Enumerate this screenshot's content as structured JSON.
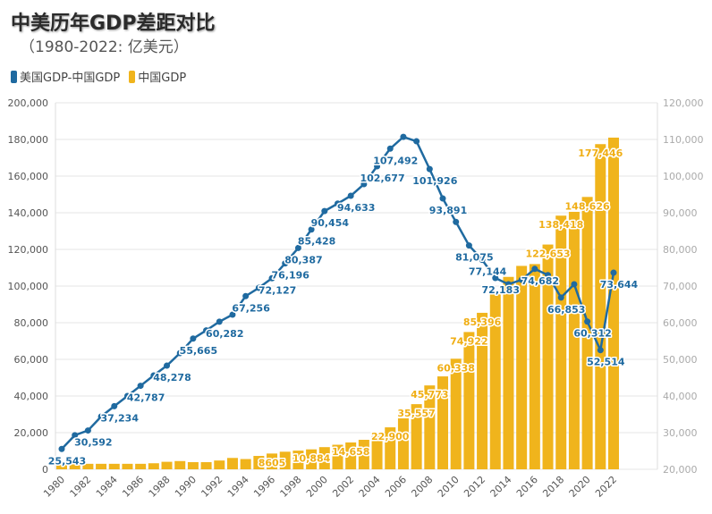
{
  "header": {
    "title": "中美历年GDP差距对比",
    "subtitle": "（1980-2022: 亿美元）"
  },
  "legend": [
    {
      "label": "美国GDP-中国GDP",
      "color": "#1f6aa0"
    },
    {
      "label": "中国GDP",
      "color": "#f0b41c"
    }
  ],
  "chart_data": {
    "type": "bar+line",
    "title": "中美历年GDP差距对比",
    "subtitle": "（1980-2022: 亿美元）",
    "categories": [
      1980,
      1981,
      1982,
      1983,
      1984,
      1985,
      1986,
      1987,
      1988,
      1989,
      1990,
      1991,
      1992,
      1993,
      1994,
      1995,
      1996,
      1997,
      1998,
      1999,
      2000,
      2001,
      2002,
      2003,
      2004,
      2005,
      2006,
      2007,
      2008,
      2009,
      2010,
      2011,
      2012,
      2013,
      2014,
      2015,
      2016,
      2017,
      2018,
      2019,
      2020,
      2021,
      2022
    ],
    "x_tick_labels": [
      "1980",
      "1982",
      "1984",
      "1986",
      "1988",
      "1990",
      "1992",
      "1994",
      "1996",
      "1998",
      "2000",
      "2002",
      "2004",
      "2006",
      "2008",
      "2010",
      "2012",
      "2014",
      "2016",
      "2018",
      "2020",
      "2022"
    ],
    "series": [
      {
        "name": "中国GDP",
        "type": "bar",
        "axis": "left",
        "color": "#f0b41c",
        "values": [
          3000,
          2900,
          3000,
          3000,
          3000,
          3000,
          3000,
          3300,
          4100,
          4500,
          3900,
          3900,
          4800,
          6200,
          5600,
          7300,
          8605,
          9600,
          10200,
          10884,
          12100,
          13400,
          14658,
          16100,
          19500,
          22900,
          27800,
          35557,
          45773,
          50700,
          60338,
          74922,
          85396,
          96000,
          105000,
          111000,
          112000,
          122653,
          138418,
          140500,
          148626,
          177446,
          181000
        ],
        "labels": {
          "1996": "8605",
          "1999": "10,884",
          "2002": "14,658",
          "2005": "22,900",
          "2007": "35,557",
          "2008": "45,773",
          "2010": "60,338",
          "2011": "74,922",
          "2012": "85,396",
          "2017": "122,653",
          "2018": "138,418",
          "2020": "148,626",
          "2021": "177,446"
        }
      },
      {
        "name": "美国GDP-中国GDP",
        "type": "line",
        "axis": "right",
        "color": "#1f6aa0",
        "values": [
          25543,
          29300,
          30592,
          34400,
          37234,
          40000,
          42787,
          45600,
          48278,
          51700,
          55665,
          57900,
          60282,
          62200,
          67256,
          69500,
          72127,
          76196,
          80387,
          85428,
          90454,
          92500,
          94633,
          97800,
          102677,
          107492,
          110700,
          109500,
          101926,
          93891,
          87500,
          81075,
          77144,
          72183,
          70500,
          71700,
          74682,
          73000,
          66853,
          70500,
          60312,
          52514,
          73644
        ],
        "labels": {
          "1980": "25,543",
          "1982": "30,592",
          "1984": "37,234",
          "1986": "42,787",
          "1988": "48,278",
          "1990": "55,665",
          "1992": "60,282",
          "1994": "67,256",
          "1996": "72,127",
          "1997": "76,196",
          "1998": "80,387",
          "1999": "85,428",
          "2000": "90,454",
          "2002": "94,633",
          "2004": "102,677",
          "2005": "107,492",
          "2008": "101,926",
          "2009": "93,891",
          "2011": "81,075",
          "2012": "77,144",
          "2013": "72,183",
          "2016": "74,682",
          "2018": "66,853",
          "2020": "60,312",
          "2021": "52,514",
          "2022": "73,644"
        }
      }
    ],
    "left_axis": {
      "range": [
        0,
        200000
      ],
      "ticks": [
        "0",
        "20,000",
        "40,000",
        "60,000",
        "80,000",
        "100,000",
        "120,000",
        "140,000",
        "160,000",
        "180,000",
        "200,000"
      ]
    },
    "right_axis": {
      "range": [
        20000,
        120000
      ],
      "ticks": [
        "20,000",
        "30,000",
        "40,000",
        "50,000",
        "60,000",
        "70,000",
        "80,000",
        "90,000",
        "100,000",
        "110,000",
        "120,000"
      ]
    },
    "grid": true,
    "legend_position": "top-left"
  }
}
